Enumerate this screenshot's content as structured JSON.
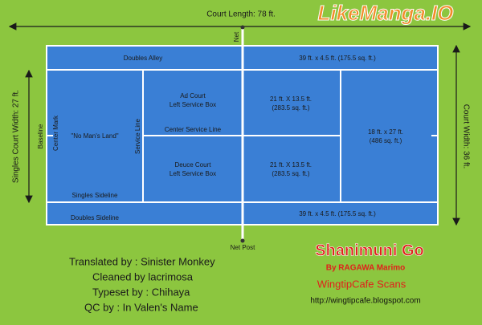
{
  "watermark": "LikeManga.IO",
  "dimensions": {
    "length": "Court Length: 78 ft.",
    "singles_width": "Singles Court Width: 27 ft.",
    "court_width": "Court Width: 36 ft."
  },
  "court": {
    "net": "Net",
    "net_post": "Net Post",
    "doubles_alley": "Doubles Alley",
    "alley_top_area": "39 ft. x 4.5 ft. (175.5 sq. ft.)",
    "alley_bottom_area": "39 ft. x 4.5 ft. (175.5 sq. ft.)",
    "doubles_sideline": "Doubles Sideline",
    "singles_sideline": "Singles Sideline",
    "baseline": "Baseline",
    "center_mark": "Center Mark",
    "service_line": "Service Line",
    "no_mans_land": "\"No Man's Land\"",
    "center_service_line": "Center Service Line",
    "ad_court": [
      "Ad Court",
      "Left Service Box"
    ],
    "deuce_court": [
      "Deuce Court",
      "Left Service Box"
    ],
    "ad_area": [
      "21 ft. X 13.5 ft.",
      "(283.5 sq. ft.)"
    ],
    "deuce_area": [
      "21 ft. X 13.5 ft.",
      "(283.5 sq. ft.)"
    ],
    "back_area": [
      "18 ft. x 27 ft.",
      "(486 sq. ft.)"
    ]
  },
  "credits": [
    "Translated by : Sinister Monkey",
    "Cleaned by lacrimosa",
    "Typeset by : Chihaya",
    "QC by : In Valen's Name"
  ],
  "branding": {
    "title": "Shanimuni Go",
    "author": "By RAGAWA Marimo",
    "group": "WingtipCafe Scans",
    "url": "http://wingtipcafe.blogspot.com"
  }
}
